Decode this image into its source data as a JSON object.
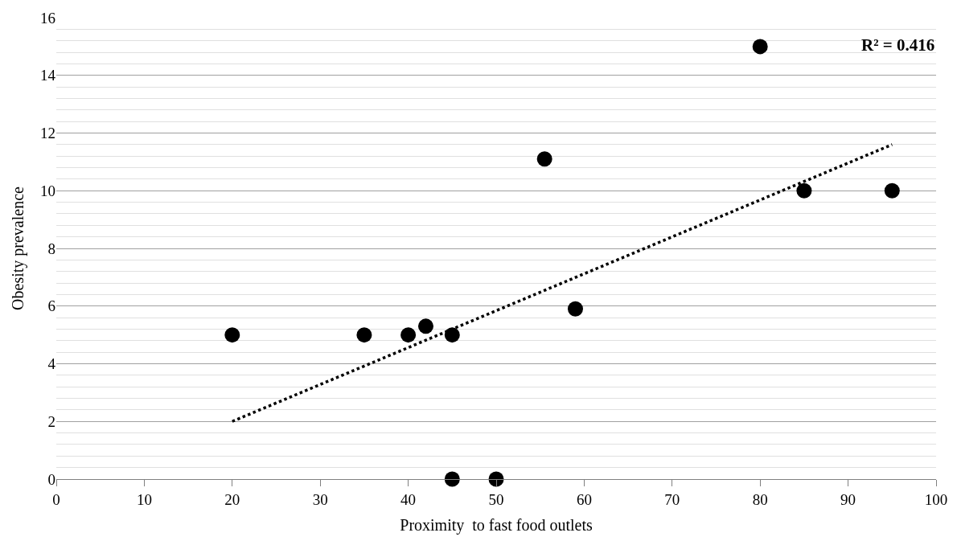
{
  "chart_data": {
    "type": "scatter",
    "xlabel": "Proximity  to fast food outlets",
    "ylabel": "Obesity prevalence",
    "series": [
      {
        "color": "#000000",
        "marker": "circle",
        "x": [
          20,
          35,
          40,
          42,
          45,
          45,
          50,
          55.5,
          59,
          80,
          85,
          95
        ],
        "values": [
          5,
          5,
          5,
          5.3,
          5,
          0,
          0,
          11.1,
          5.9,
          15,
          10,
          10
        ]
      },
      {
        "type": "line",
        "color": "#000000",
        "line_style": "dotted",
        "marker": "none",
        "x": [
          20,
          95
        ],
        "values": [
          2.0,
          11.6
        ]
      }
    ],
    "annotations": [
      "R² = 0.416"
    ],
    "xlim": [
      0,
      100
    ],
    "xticks": [
      0,
      10,
      20,
      30,
      40,
      50,
      60,
      70,
      80,
      90,
      100
    ],
    "ylim": [
      0,
      16
    ],
    "yticks": [
      0,
      2,
      4,
      6,
      8,
      10,
      12,
      14,
      16
    ],
    "grid": "y",
    "legend": false
  }
}
